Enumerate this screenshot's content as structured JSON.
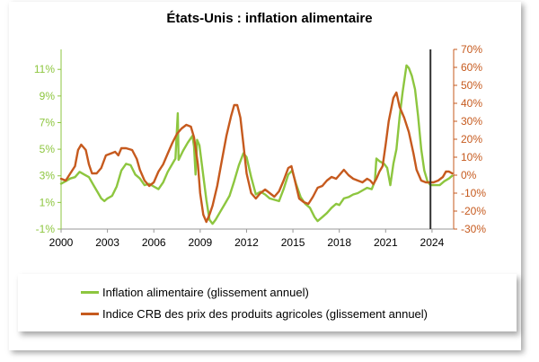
{
  "chart_data": {
    "type": "line",
    "title": "États-Unis : inflation alimentaire",
    "xlabel": "",
    "ylabel": "",
    "x_ticks": [
      "2000",
      "2003",
      "2006",
      "2009",
      "2012",
      "2015",
      "2018",
      "2021",
      "2024"
    ],
    "y_left": {
      "ticks": [
        "-1%",
        "1%",
        "3%",
        "5%",
        "7%",
        "9%",
        "11%"
      ],
      "range": [
        -1,
        12.5
      ],
      "unit": "%",
      "color": "#8dc63f"
    },
    "y_right": {
      "ticks": [
        "-30%",
        "-20%",
        "-10%",
        "0%",
        "10%",
        "20%",
        "30%",
        "40%",
        "50%",
        "60%",
        "70%"
      ],
      "range": [
        -30,
        70
      ],
      "unit": "%",
      "color": "#c65a1e"
    },
    "x_range": [
      2000,
      2025.4
    ],
    "vertical_marker_x": 2023.9,
    "legend_position": "bottom",
    "grid": false,
    "series": [
      {
        "name": "Inflation alimentaire (glissement annuel)",
        "axis": "left",
        "color": "#8dc63f",
        "points": [
          [
            2000.0,
            2.4
          ],
          [
            2000.3,
            2.6
          ],
          [
            2000.6,
            2.8
          ],
          [
            2000.9,
            2.9
          ],
          [
            2001.2,
            3.3
          ],
          [
            2001.5,
            3.1
          ],
          [
            2001.8,
            2.9
          ],
          [
            2002.1,
            2.3
          ],
          [
            2002.4,
            1.7
          ],
          [
            2002.6,
            1.3
          ],
          [
            2002.8,
            1.1
          ],
          [
            2003.0,
            1.3
          ],
          [
            2003.3,
            1.5
          ],
          [
            2003.6,
            2.2
          ],
          [
            2003.9,
            3.4
          ],
          [
            2004.2,
            3.9
          ],
          [
            2004.5,
            3.8
          ],
          [
            2004.8,
            3.1
          ],
          [
            2005.1,
            2.8
          ],
          [
            2005.4,
            2.3
          ],
          [
            2005.7,
            2.4
          ],
          [
            2006.0,
            2.2
          ],
          [
            2006.3,
            2.0
          ],
          [
            2006.6,
            2.5
          ],
          [
            2006.9,
            3.3
          ],
          [
            2007.2,
            3.9
          ],
          [
            2007.4,
            4.3
          ],
          [
            2007.55,
            7.7
          ],
          [
            2007.6,
            4.2
          ],
          [
            2007.9,
            4.9
          ],
          [
            2008.2,
            5.5
          ],
          [
            2008.5,
            6.0
          ],
          [
            2008.6,
            5.2
          ],
          [
            2008.7,
            3.1
          ],
          [
            2008.8,
            5.7
          ],
          [
            2008.95,
            5.3
          ],
          [
            2009.2,
            3.0
          ],
          [
            2009.4,
            1.2
          ],
          [
            2009.6,
            -0.3
          ],
          [
            2009.8,
            -0.6
          ],
          [
            2010.0,
            -0.3
          ],
          [
            2010.3,
            0.3
          ],
          [
            2010.6,
            0.9
          ],
          [
            2010.9,
            1.5
          ],
          [
            2011.2,
            2.6
          ],
          [
            2011.5,
            3.8
          ],
          [
            2011.8,
            4.7
          ],
          [
            2012.0,
            4.4
          ],
          [
            2012.3,
            2.9
          ],
          [
            2012.6,
            1.6
          ],
          [
            2012.9,
            1.8
          ],
          [
            2013.2,
            1.6
          ],
          [
            2013.5,
            1.3
          ],
          [
            2013.8,
            1.2
          ],
          [
            2014.1,
            1.1
          ],
          [
            2014.4,
            2.0
          ],
          [
            2014.7,
            3.1
          ],
          [
            2014.95,
            3.4
          ],
          [
            2015.2,
            2.4
          ],
          [
            2015.5,
            1.4
          ],
          [
            2015.8,
            0.9
          ],
          [
            2016.1,
            0.6
          ],
          [
            2016.4,
            -0.1
          ],
          [
            2016.6,
            -0.4
          ],
          [
            2016.9,
            -0.1
          ],
          [
            2017.2,
            0.2
          ],
          [
            2017.5,
            0.6
          ],
          [
            2017.8,
            0.9
          ],
          [
            2018.0,
            0.8
          ],
          [
            2018.3,
            1.3
          ],
          [
            2018.6,
            1.4
          ],
          [
            2018.9,
            1.6
          ],
          [
            2019.2,
            1.7
          ],
          [
            2019.5,
            1.9
          ],
          [
            2019.8,
            2.1
          ],
          [
            2020.1,
            2.0
          ],
          [
            2020.3,
            2.6
          ],
          [
            2020.4,
            4.3
          ],
          [
            2020.6,
            4.1
          ],
          [
            2020.9,
            3.9
          ],
          [
            2021.1,
            3.6
          ],
          [
            2021.3,
            2.3
          ],
          [
            2021.5,
            3.9
          ],
          [
            2021.7,
            5.0
          ],
          [
            2021.9,
            7.4
          ],
          [
            2022.1,
            9.3
          ],
          [
            2022.35,
            11.3
          ],
          [
            2022.5,
            11.1
          ],
          [
            2022.7,
            10.5
          ],
          [
            2022.9,
            9.5
          ],
          [
            2023.1,
            7.5
          ],
          [
            2023.3,
            5.0
          ],
          [
            2023.5,
            3.4
          ],
          [
            2023.7,
            2.6
          ],
          [
            2023.9,
            2.3
          ],
          [
            2024.2,
            2.3
          ],
          [
            2024.5,
            2.3
          ],
          [
            2024.8,
            2.6
          ],
          [
            2025.1,
            2.8
          ],
          [
            2025.3,
            3.0
          ]
        ]
      },
      {
        "name": "Indice CRB des prix des produits agricoles (glissement annuel)",
        "axis": "right",
        "color": "#c65a1e",
        "points": [
          [
            2000.0,
            -2
          ],
          [
            2000.3,
            -3
          ],
          [
            2000.6,
            1
          ],
          [
            2000.9,
            5
          ],
          [
            2001.1,
            14
          ],
          [
            2001.3,
            17
          ],
          [
            2001.6,
            14
          ],
          [
            2001.8,
            6
          ],
          [
            2002.0,
            1
          ],
          [
            2002.3,
            1
          ],
          [
            2002.6,
            4
          ],
          [
            2002.9,
            11
          ],
          [
            2003.2,
            12
          ],
          [
            2003.5,
            13
          ],
          [
            2003.7,
            11
          ],
          [
            2003.9,
            15
          ],
          [
            2004.2,
            15
          ],
          [
            2004.6,
            14
          ],
          [
            2004.9,
            9
          ],
          [
            2005.1,
            3
          ],
          [
            2005.4,
            -3
          ],
          [
            2005.7,
            -6
          ],
          [
            2006.0,
            -4
          ],
          [
            2006.3,
            2
          ],
          [
            2006.6,
            6
          ],
          [
            2006.9,
            12
          ],
          [
            2007.2,
            18
          ],
          [
            2007.5,
            23
          ],
          [
            2007.8,
            26
          ],
          [
            2008.1,
            28
          ],
          [
            2008.4,
            27
          ],
          [
            2008.6,
            21
          ],
          [
            2008.85,
            6
          ],
          [
            2009.0,
            -10
          ],
          [
            2009.2,
            -22
          ],
          [
            2009.4,
            -26
          ],
          [
            2009.6,
            -22
          ],
          [
            2009.8,
            -17
          ],
          [
            2010.1,
            -6
          ],
          [
            2010.4,
            8
          ],
          [
            2010.7,
            22
          ],
          [
            2011.0,
            33
          ],
          [
            2011.2,
            39
          ],
          [
            2011.4,
            39
          ],
          [
            2011.6,
            32
          ],
          [
            2011.8,
            17
          ],
          [
            2012.0,
            1
          ],
          [
            2012.3,
            -10
          ],
          [
            2012.6,
            -13
          ],
          [
            2012.9,
            -10
          ],
          [
            2013.2,
            -8
          ],
          [
            2013.5,
            -10
          ],
          [
            2013.8,
            -12
          ],
          [
            2014.1,
            -9
          ],
          [
            2014.4,
            -3
          ],
          [
            2014.7,
            4
          ],
          [
            2014.9,
            5
          ],
          [
            2015.1,
            -2
          ],
          [
            2015.4,
            -13
          ],
          [
            2015.7,
            -15
          ],
          [
            2016.0,
            -16
          ],
          [
            2016.3,
            -12
          ],
          [
            2016.6,
            -7
          ],
          [
            2016.9,
            -6
          ],
          [
            2017.2,
            -3
          ],
          [
            2017.5,
            -1
          ],
          [
            2017.8,
            -2
          ],
          [
            2018.1,
            1
          ],
          [
            2018.3,
            3
          ],
          [
            2018.6,
            0
          ],
          [
            2018.9,
            -2
          ],
          [
            2019.2,
            -3
          ],
          [
            2019.5,
            -4
          ],
          [
            2019.8,
            -2
          ],
          [
            2020.0,
            -3
          ],
          [
            2020.2,
            -5
          ],
          [
            2020.4,
            -2
          ],
          [
            2020.6,
            2
          ],
          [
            2020.8,
            5
          ],
          [
            2021.0,
            17
          ],
          [
            2021.2,
            30
          ],
          [
            2021.5,
            43
          ],
          [
            2021.7,
            46
          ],
          [
            2021.9,
            38
          ],
          [
            2022.2,
            32
          ],
          [
            2022.5,
            24
          ],
          [
            2022.8,
            12
          ],
          [
            2023.0,
            3
          ],
          [
            2023.3,
            -3
          ],
          [
            2023.6,
            -4
          ],
          [
            2023.9,
            -4
          ],
          [
            2024.1,
            -4
          ],
          [
            2024.4,
            -3
          ],
          [
            2024.7,
            -1
          ],
          [
            2024.9,
            2
          ],
          [
            2025.1,
            2
          ],
          [
            2025.3,
            1
          ]
        ]
      }
    ]
  }
}
